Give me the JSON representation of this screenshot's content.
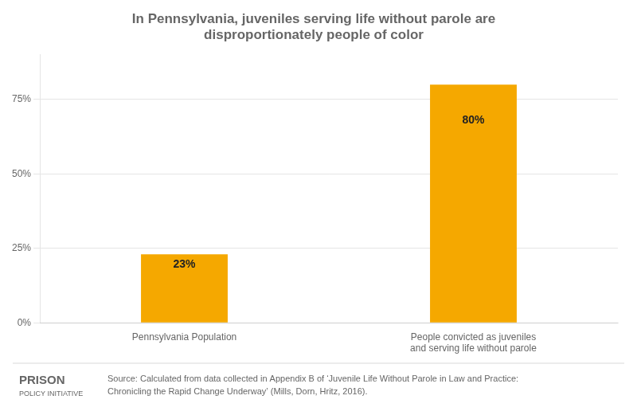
{
  "chart_data": {
    "type": "bar",
    "title": "In Pennsylvania, juveniles serving life without parole are\ndisproportionately people of color",
    "categories": [
      "Pennsylvania Population",
      "People convicted as juveniles\nand serving life without parole"
    ],
    "values": [
      23,
      80
    ],
    "value_labels": [
      "23%",
      "80%"
    ],
    "data_labels": true,
    "color": "#F5A800",
    "ylim": [
      0,
      90
    ],
    "yticks": [
      {
        "value": 0,
        "label": "0%"
      },
      {
        "value": 25,
        "label": "25%"
      },
      {
        "value": 50,
        "label": "50%"
      },
      {
        "value": 75,
        "label": "75%"
      }
    ],
    "grid": true,
    "annotations": [
      "PRISON",
      "POLICY INITIATIVE",
      "Source: Calculated from data collected in Appendix B of ‘Juvenile Life Without Parole in Law and Practice:\nChronicling the Rapid Change Underway’ (Mills, Dorn, Hritz, 2016)."
    ]
  }
}
